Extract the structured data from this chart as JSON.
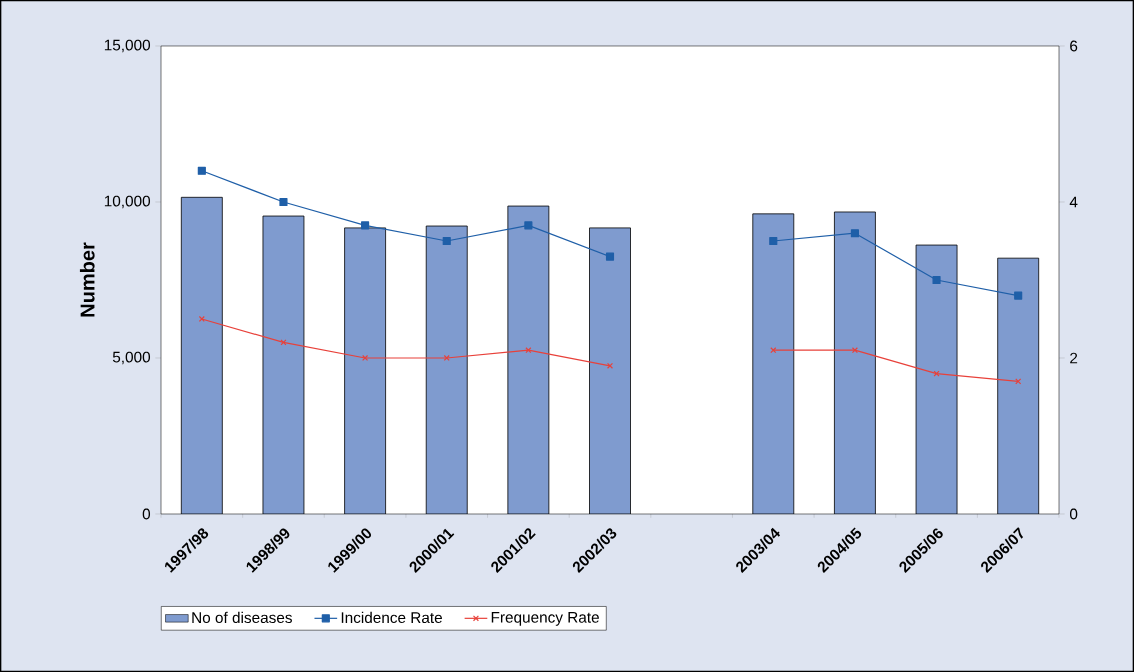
{
  "chart_data": {
    "type": "bar",
    "ylabel": "Number",
    "categories": [
      "1997/98",
      "1998/99",
      "1999/00",
      "2000/01",
      "2001/02",
      "2002/03",
      null,
      "2003/04",
      "2004/05",
      "2005/06",
      "2006/07"
    ],
    "series": [
      {
        "name": "No of diseases",
        "color": "#7f9bcf",
        "values": [
          10150,
          9550,
          9170,
          9230,
          9870,
          9170,
          null,
          9620,
          9680,
          8620,
          8200
        ]
      },
      {
        "name": "Incidence Rate",
        "type": "line",
        "axis": "y2",
        "marker": "square",
        "color": "#1f5fa8",
        "values": [
          4.4,
          4.0,
          3.7,
          3.5,
          3.7,
          3.3,
          null,
          3.5,
          3.6,
          3.0,
          2.8
        ]
      },
      {
        "name": "Frequency Rate",
        "type": "line",
        "axis": "y2",
        "marker": "cross",
        "color": "#e8413a",
        "values": [
          2.5,
          2.2,
          2.0,
          2.0,
          2.1,
          1.9,
          null,
          2.1,
          2.1,
          1.8,
          1.7
        ]
      }
    ],
    "ylim": [
      0,
      15000
    ],
    "yticks": [
      0,
      {
        "value": 5000,
        "label": "5,000"
      },
      {
        "value": 10000,
        "label": "10,000"
      },
      {
        "value": 15000,
        "label": "15,000"
      }
    ],
    "y2lim": [
      0,
      6
    ],
    "y2ticks": [
      0,
      2,
      4,
      6
    ],
    "grid": false,
    "legend": "bottom"
  }
}
